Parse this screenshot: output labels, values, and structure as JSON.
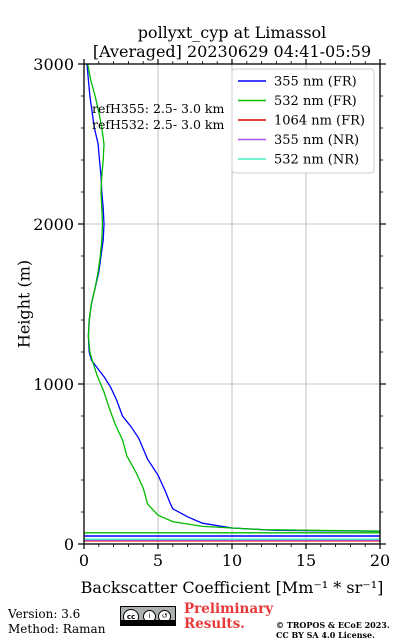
{
  "chart_data": {
    "type": "line",
    "title": [
      "pollyxt_cyp at Limassol",
      "[Averaged] 20230629 04:41-05:59"
    ],
    "xlabel": "Backscatter Coefficient [Mm⁻¹ * sr⁻¹]",
    "ylabel": "Height (m)",
    "xlim": [
      0,
      20
    ],
    "ylim": [
      0,
      3000
    ],
    "xticks": [
      0,
      5,
      10,
      15,
      20
    ],
    "yticks": [
      0,
      1000,
      2000,
      3000
    ],
    "grid": true,
    "legend_position": "top-right",
    "annotations": [
      "refH355:  2.5- 3.0 km",
      "refH532:  2.5- 3.0 km"
    ],
    "series": [
      {
        "name": "355 nm (FR)",
        "color": "#0000ff",
        "points": [
          [
            20,
            50
          ],
          [
            0,
            50
          ]
        ],
        "profile": [
          [
            20,
            80
          ],
          [
            13,
            85
          ],
          [
            10,
            100
          ],
          [
            8,
            130
          ],
          [
            7,
            170
          ],
          [
            6,
            220
          ],
          [
            5.8,
            260
          ],
          [
            5.5,
            330
          ],
          [
            5,
            430
          ],
          [
            4.3,
            530
          ],
          [
            3.7,
            660
          ],
          [
            3.2,
            730
          ],
          [
            2.6,
            800
          ],
          [
            2.2,
            900
          ],
          [
            1.8,
            980
          ],
          [
            1.4,
            1040
          ],
          [
            0.9,
            1100
          ],
          [
            0.5,
            1150
          ],
          [
            0.35,
            1200
          ],
          [
            0.3,
            1300
          ],
          [
            0.35,
            1400
          ],
          [
            0.5,
            1500
          ],
          [
            0.75,
            1600
          ],
          [
            1.0,
            1700
          ],
          [
            1.15,
            1800
          ],
          [
            1.3,
            1900
          ],
          [
            1.35,
            2000
          ],
          [
            1.3,
            2100
          ],
          [
            1.2,
            2200
          ],
          [
            1.15,
            2300
          ],
          [
            1.05,
            2400
          ],
          [
            0.95,
            2500
          ],
          [
            0.7,
            2600
          ],
          [
            0.55,
            2700
          ],
          [
            0.4,
            2800
          ],
          [
            0.3,
            2900
          ],
          [
            0.2,
            3000
          ]
        ]
      },
      {
        "name": "532 nm (FR)",
        "color": "#00bb00",
        "points": [
          [
            20,
            70
          ],
          [
            0,
            70
          ]
        ],
        "profile": [
          [
            20,
            80
          ],
          [
            16,
            85
          ],
          [
            12,
            90
          ],
          [
            8,
            110
          ],
          [
            6,
            140
          ],
          [
            5,
            180
          ],
          [
            4.3,
            250
          ],
          [
            4,
            350
          ],
          [
            3.5,
            450
          ],
          [
            2.9,
            550
          ],
          [
            2.6,
            650
          ],
          [
            2.1,
            750
          ],
          [
            1.7,
            850
          ],
          [
            1.35,
            950
          ],
          [
            0.9,
            1050
          ],
          [
            0.55,
            1150
          ],
          [
            0.4,
            1200
          ],
          [
            0.3,
            1300
          ],
          [
            0.35,
            1400
          ],
          [
            0.5,
            1500
          ],
          [
            0.75,
            1600
          ],
          [
            0.95,
            1700
          ],
          [
            1.1,
            1800
          ],
          [
            1.2,
            1900
          ],
          [
            1.25,
            2000
          ],
          [
            1.2,
            2100
          ],
          [
            1.15,
            2200
          ],
          [
            1.2,
            2300
          ],
          [
            1.3,
            2400
          ],
          [
            1.35,
            2500
          ],
          [
            1.2,
            2600
          ],
          [
            1.0,
            2700
          ],
          [
            0.75,
            2800
          ],
          [
            0.45,
            2900
          ],
          [
            0.25,
            3000
          ]
        ]
      },
      {
        "name": "1064 nm (FR)",
        "color": "#e00000",
        "points": [
          [
            0,
            20
          ],
          [
            20,
            20
          ]
        ],
        "profile": []
      },
      {
        "name": "355 nm (NR)",
        "color": "#a855f7",
        "points": [
          [
            0,
            25
          ],
          [
            20,
            25
          ]
        ],
        "profile": []
      },
      {
        "name": "532 nm (NR)",
        "color": "#44f0c0",
        "points": [
          [
            0,
            30
          ],
          [
            20,
            30
          ]
        ],
        "profile": []
      }
    ]
  },
  "footer": {
    "version": "Version: 3.6",
    "method": "Method: Raman",
    "preliminary_line1": "Preliminary",
    "preliminary_line2": "Results.",
    "copyright_line1": "© TROPOS & ECoE 2023.",
    "copyright_line2": "CC BY SA 4.0 License.",
    "license_badge": "cc by sa"
  }
}
